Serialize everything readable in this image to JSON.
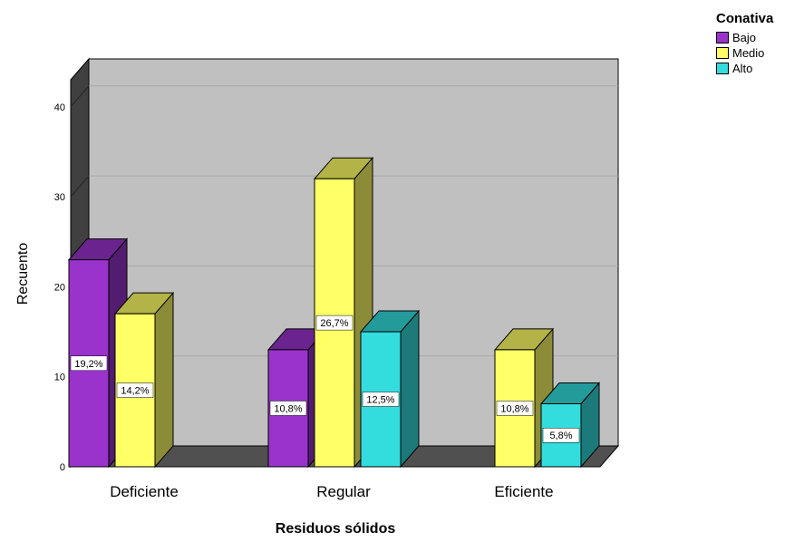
{
  "chart_data": {
    "type": "bar",
    "title": "",
    "xlabel": "Residuos sólidos",
    "ylabel": "Recuento",
    "categories": [
      "Deficiente",
      "Regular",
      "Eficiente"
    ],
    "y_ticks": [
      0,
      10,
      20,
      30,
      40
    ],
    "ylim": [
      0,
      43
    ],
    "grid": true,
    "legend_position": "top-right",
    "legend_title": "Conativa",
    "series": [
      {
        "name": "Bajo",
        "color": "#9933cc",
        "values": [
          23,
          13,
          null
        ],
        "labels": [
          "19,2%",
          "10,8%",
          ""
        ]
      },
      {
        "name": "Medio",
        "color": "#ffff66",
        "values": [
          17,
          32,
          13
        ],
        "labels": [
          "14,2%",
          "26,7%",
          "10,8%"
        ]
      },
      {
        "name": "Alto",
        "color": "#33dddd",
        "values": [
          null,
          15,
          7
        ],
        "labels": [
          "",
          "12,5%",
          "5,8%"
        ]
      }
    ]
  }
}
